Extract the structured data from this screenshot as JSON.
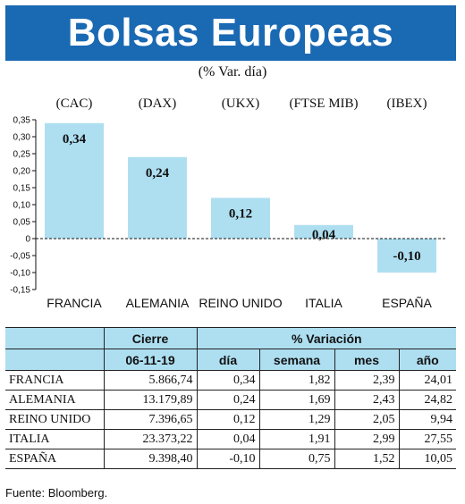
{
  "header": {
    "title": "Bolsas Europeas",
    "subtitle": "(% Var. día)"
  },
  "colors": {
    "banner": "#1a69b3",
    "bar": "#aedff1",
    "table_header": "#aedff1"
  },
  "chart_data": {
    "type": "bar",
    "categories": [
      "FRANCIA",
      "ALEMANIA",
      "REINO UNIDO",
      "ITALIA",
      "ESPAÑA"
    ],
    "indices": [
      "(CAC)",
      "(DAX)",
      "(UKX)",
      "(FTSE MIB)",
      "(IBEX)"
    ],
    "values": [
      0.34,
      0.24,
      0.12,
      0.04,
      -0.1
    ],
    "value_labels": [
      "0,34",
      "0,24",
      "0,12",
      "0,04",
      "-0,10"
    ],
    "yticks": [
      "0,35",
      "0,30",
      "0,25",
      "0,20",
      "0,15",
      "0,10",
      "0,05",
      "0",
      "-0,05",
      "-0,10",
      "-0,15"
    ],
    "ytick_values": [
      0.35,
      0.3,
      0.25,
      0.2,
      0.15,
      0.1,
      0.05,
      0,
      -0.05,
      -0.1,
      -0.15
    ],
    "ylim": [
      -0.15,
      0.35
    ],
    "grid": false,
    "title": "",
    "xlabel": "",
    "ylabel": ""
  },
  "table": {
    "group_headers": [
      "Cierre",
      "% Variación"
    ],
    "sub_headers": [
      "06-11-19",
      "día",
      "semana",
      "mes",
      "año"
    ],
    "rows": [
      {
        "country": "FRANCIA",
        "cierre": "5.866,74",
        "dia": "0,34",
        "semana": "1,82",
        "mes": "2,39",
        "anio": "24,01"
      },
      {
        "country": "ALEMANIA",
        "cierre": "13.179,89",
        "dia": "0,24",
        "semana": "1,69",
        "mes": "2,43",
        "anio": "24,82"
      },
      {
        "country": "REINO UNIDO",
        "cierre": "7.396,65",
        "dia": "0,12",
        "semana": "1,29",
        "mes": "2,05",
        "anio": "9,94"
      },
      {
        "country": "ITALIA",
        "cierre": "23.373,22",
        "dia": "0,04",
        "semana": "1,91",
        "mes": "2,99",
        "anio": "27,55"
      },
      {
        "country": "ESPAÑA",
        "cierre": "9.398,40",
        "dia": "-0,10",
        "semana": "0,75",
        "mes": "1,52",
        "anio": "10,05"
      }
    ]
  },
  "footer": {
    "source": "Fuente: Bloomberg."
  }
}
